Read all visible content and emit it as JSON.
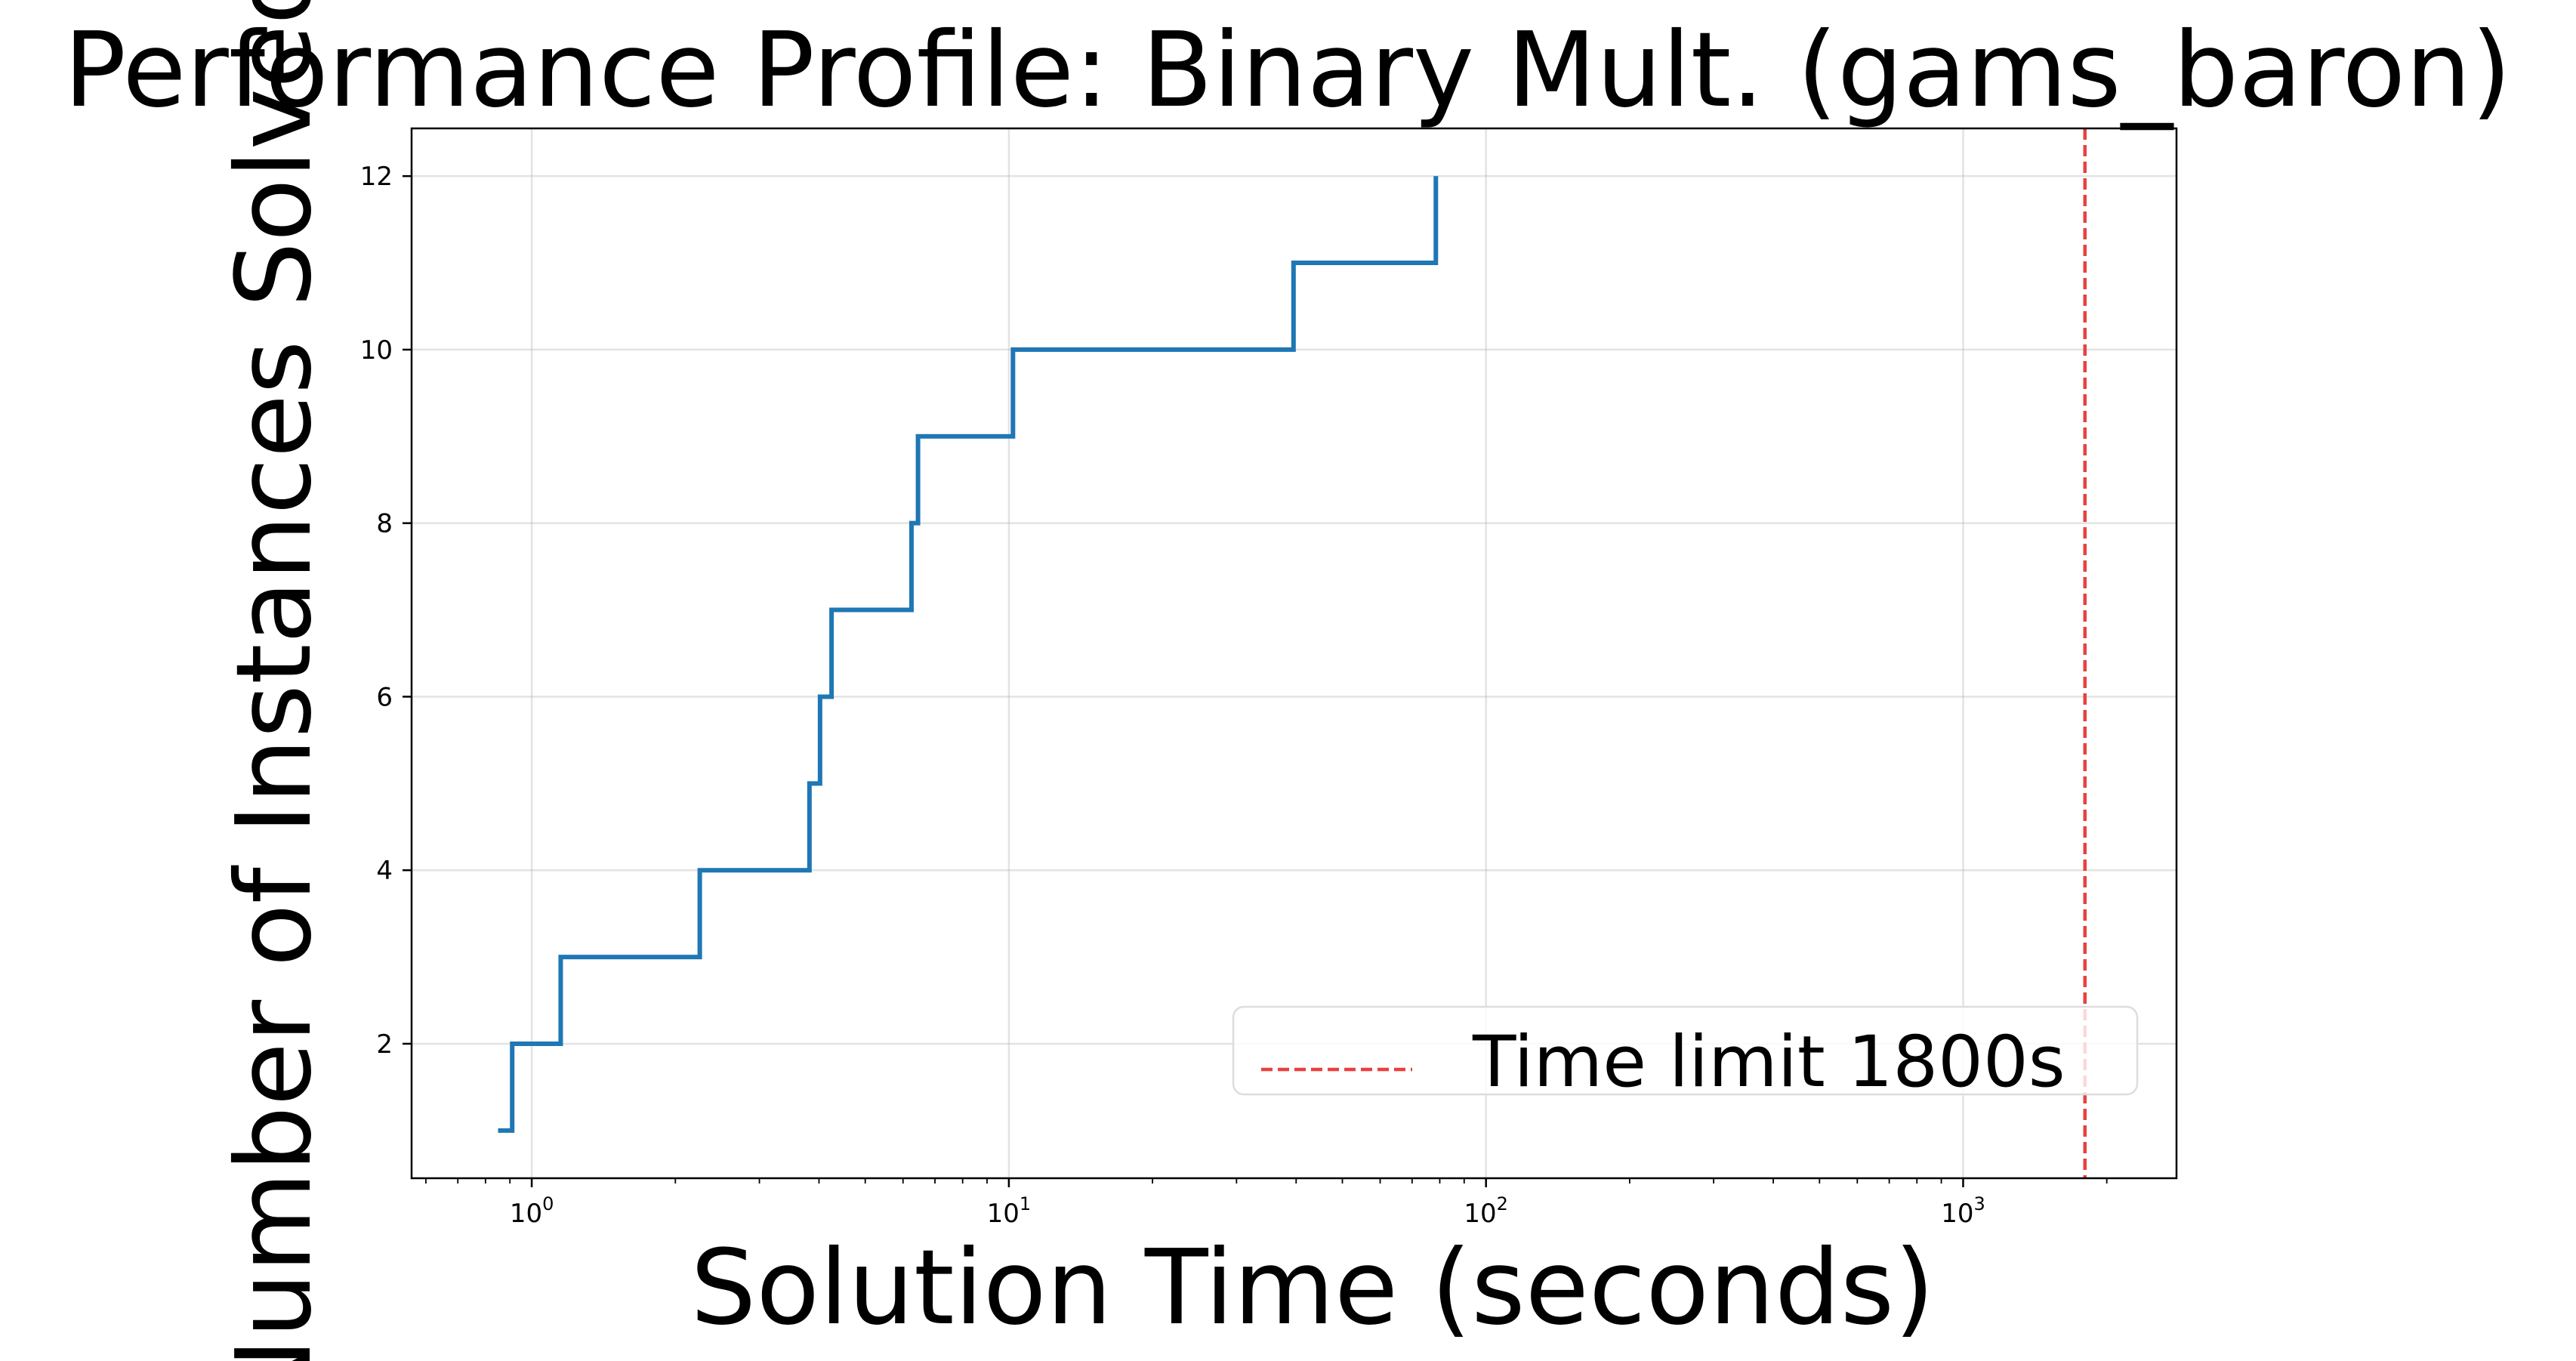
{
  "chart_data": {
    "type": "line",
    "title": "Performance Profile: Binary Mult. (gams_baron)",
    "xlabel": "Solution Time (seconds)",
    "ylabel": "Number of Instances Solved",
    "x_scale": "log",
    "xlim": [
      0.56,
      2800
    ],
    "ylim": [
      0.45,
      12.55
    ],
    "x_ticks": [
      {
        "value": 1,
        "base": "10",
        "exp": "0"
      },
      {
        "value": 10,
        "base": "10",
        "exp": "1"
      },
      {
        "value": 100,
        "base": "10",
        "exp": "2"
      },
      {
        "value": 1000,
        "base": "10",
        "exp": "3"
      }
    ],
    "y_ticks": [
      {
        "value": 2,
        "label": "2"
      },
      {
        "value": 4,
        "label": "4"
      },
      {
        "value": 6,
        "label": "6"
      },
      {
        "value": 8,
        "label": "8"
      },
      {
        "value": 10,
        "label": "10"
      },
      {
        "value": 12,
        "label": "12"
      }
    ],
    "grid": true,
    "series": [
      {
        "color": "#1f77b4",
        "style": "step-post",
        "x": [
          0.85,
          0.91,
          1.15,
          2.25,
          3.82,
          4.02,
          4.25,
          6.25,
          6.45,
          10.2,
          39.5,
          78.5
        ],
        "y": [
          1,
          2,
          3,
          4,
          5,
          6,
          7,
          8,
          9,
          10,
          11,
          12
        ]
      }
    ],
    "reference_lines": [
      {
        "orientation": "vertical",
        "x": 1800,
        "color": "#e8413f",
        "dash": true,
        "label": "Time limit 1800s"
      }
    ],
    "legend": {
      "position": "lower-right",
      "entries": [
        "Time limit 1800s"
      ]
    }
  }
}
